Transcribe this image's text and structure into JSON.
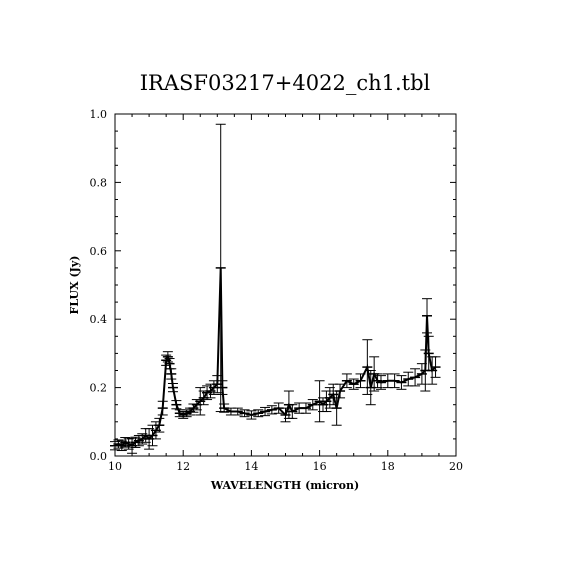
{
  "chart_data": {
    "type": "scatter",
    "title": "IRASF03217+4022_ch1.tbl",
    "xlabel": "WAVELENGTH (micron)",
    "ylabel": "FLUX (Jy)",
    "xlim": [
      10,
      20
    ],
    "ylim": [
      0.0,
      1.0
    ],
    "x_ticks": [
      10,
      12,
      14,
      16,
      18,
      20
    ],
    "x_tick_labels": [
      "10",
      "12",
      "14",
      "16",
      "18",
      "20"
    ],
    "y_ticks": [
      0.0,
      0.2,
      0.4,
      0.6,
      0.8,
      1.0
    ],
    "y_tick_labels": [
      "0.0",
      "0.2",
      "0.4",
      "0.6",
      "0.8",
      "1.0"
    ],
    "grid": false,
    "marker": "error bars",
    "series": [
      {
        "points": [
          {
            "x": 10.0,
            "y": 0.03,
            "err": 0.012
          },
          {
            "x": 10.1,
            "y": 0.035,
            "err": 0.012
          },
          {
            "x": 10.2,
            "y": 0.03,
            "err": 0.014
          },
          {
            "x": 10.3,
            "y": 0.04,
            "err": 0.014
          },
          {
            "x": 10.4,
            "y": 0.035,
            "err": 0.015
          },
          {
            "x": 10.5,
            "y": 0.03,
            "err": 0.022
          },
          {
            "x": 10.6,
            "y": 0.04,
            "err": 0.015
          },
          {
            "x": 10.7,
            "y": 0.045,
            "err": 0.015
          },
          {
            "x": 10.8,
            "y": 0.05,
            "err": 0.015
          },
          {
            "x": 10.9,
            "y": 0.06,
            "err": 0.02
          },
          {
            "x": 11.0,
            "y": 0.05,
            "err": 0.03
          },
          {
            "x": 11.1,
            "y": 0.06,
            "err": 0.03
          },
          {
            "x": 11.2,
            "y": 0.075,
            "err": 0.025
          },
          {
            "x": 11.3,
            "y": 0.09,
            "err": 0.02
          },
          {
            "x": 11.4,
            "y": 0.14,
            "err": 0.02
          },
          {
            "x": 11.5,
            "y": 0.28,
            "err": 0.015
          },
          {
            "x": 11.55,
            "y": 0.29,
            "err": 0.015
          },
          {
            "x": 11.6,
            "y": 0.27,
            "err": 0.015
          },
          {
            "x": 11.65,
            "y": 0.24,
            "err": 0.015
          },
          {
            "x": 11.7,
            "y": 0.2,
            "err": 0.012
          },
          {
            "x": 11.8,
            "y": 0.15,
            "err": 0.012
          },
          {
            "x": 11.9,
            "y": 0.125,
            "err": 0.01
          },
          {
            "x": 12.0,
            "y": 0.12,
            "err": 0.01
          },
          {
            "x": 12.1,
            "y": 0.125,
            "err": 0.01
          },
          {
            "x": 12.2,
            "y": 0.13,
            "err": 0.01
          },
          {
            "x": 12.3,
            "y": 0.14,
            "err": 0.012
          },
          {
            "x": 12.4,
            "y": 0.15,
            "err": 0.015
          },
          {
            "x": 12.5,
            "y": 0.16,
            "err": 0.04
          },
          {
            "x": 12.6,
            "y": 0.17,
            "err": 0.02
          },
          {
            "x": 12.7,
            "y": 0.185,
            "err": 0.02
          },
          {
            "x": 12.8,
            "y": 0.19,
            "err": 0.02
          },
          {
            "x": 12.9,
            "y": 0.2,
            "err": 0.02
          },
          {
            "x": 13.0,
            "y": 0.21,
            "err": 0.025
          },
          {
            "x": 13.1,
            "y": 0.55,
            "err": 0.42
          },
          {
            "x": 13.15,
            "y": 0.2,
            "err": 0.02
          },
          {
            "x": 13.2,
            "y": 0.14,
            "err": 0.012
          },
          {
            "x": 13.4,
            "y": 0.13,
            "err": 0.01
          },
          {
            "x": 13.6,
            "y": 0.13,
            "err": 0.01
          },
          {
            "x": 13.8,
            "y": 0.125,
            "err": 0.01
          },
          {
            "x": 14.0,
            "y": 0.12,
            "err": 0.012
          },
          {
            "x": 14.2,
            "y": 0.125,
            "err": 0.01
          },
          {
            "x": 14.4,
            "y": 0.13,
            "err": 0.012
          },
          {
            "x": 14.6,
            "y": 0.135,
            "err": 0.012
          },
          {
            "x": 14.8,
            "y": 0.14,
            "err": 0.015
          },
          {
            "x": 15.0,
            "y": 0.12,
            "err": 0.02
          },
          {
            "x": 15.1,
            "y": 0.15,
            "err": 0.04
          },
          {
            "x": 15.2,
            "y": 0.13,
            "err": 0.02
          },
          {
            "x": 15.4,
            "y": 0.14,
            "err": 0.015
          },
          {
            "x": 15.6,
            "y": 0.14,
            "err": 0.015
          },
          {
            "x": 15.8,
            "y": 0.15,
            "err": 0.015
          },
          {
            "x": 16.0,
            "y": 0.16,
            "err": 0.06
          },
          {
            "x": 16.1,
            "y": 0.15,
            "err": 0.02
          },
          {
            "x": 16.2,
            "y": 0.16,
            "err": 0.03
          },
          {
            "x": 16.3,
            "y": 0.17,
            "err": 0.03
          },
          {
            "x": 16.4,
            "y": 0.18,
            "err": 0.03
          },
          {
            "x": 16.5,
            "y": 0.14,
            "err": 0.05
          },
          {
            "x": 16.6,
            "y": 0.19,
            "err": 0.02
          },
          {
            "x": 16.8,
            "y": 0.22,
            "err": 0.02
          },
          {
            "x": 17.0,
            "y": 0.21,
            "err": 0.015
          },
          {
            "x": 17.2,
            "y": 0.22,
            "err": 0.02
          },
          {
            "x": 17.4,
            "y": 0.26,
            "err": 0.08
          },
          {
            "x": 17.5,
            "y": 0.2,
            "err": 0.05
          },
          {
            "x": 17.6,
            "y": 0.24,
            "err": 0.05
          },
          {
            "x": 17.7,
            "y": 0.22,
            "err": 0.02
          },
          {
            "x": 17.8,
            "y": 0.215,
            "err": 0.02
          },
          {
            "x": 18.0,
            "y": 0.22,
            "err": 0.02
          },
          {
            "x": 18.2,
            "y": 0.22,
            "err": 0.02
          },
          {
            "x": 18.4,
            "y": 0.215,
            "err": 0.02
          },
          {
            "x": 18.6,
            "y": 0.225,
            "err": 0.02
          },
          {
            "x": 18.8,
            "y": 0.23,
            "err": 0.025
          },
          {
            "x": 19.0,
            "y": 0.24,
            "err": 0.03
          },
          {
            "x": 19.1,
            "y": 0.25,
            "err": 0.06
          },
          {
            "x": 19.15,
            "y": 0.41,
            "err": 0.05
          },
          {
            "x": 19.2,
            "y": 0.3,
            "err": 0.05
          },
          {
            "x": 19.3,
            "y": 0.25,
            "err": 0.04
          },
          {
            "x": 19.4,
            "y": 0.26,
            "err": 0.03
          }
        ]
      }
    ]
  },
  "colors": {
    "background": "#ffffff",
    "ink": "#000000"
  }
}
